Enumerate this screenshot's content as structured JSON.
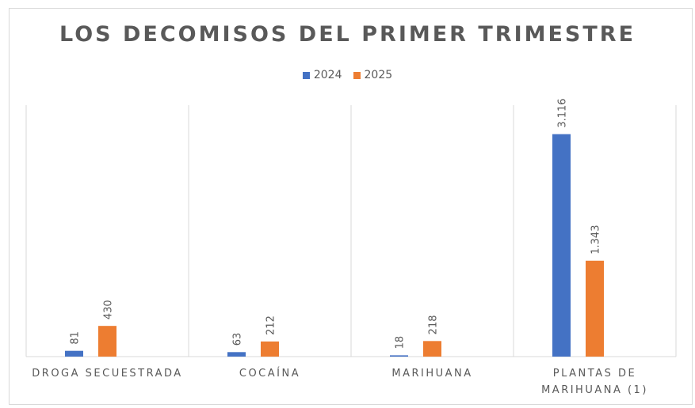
{
  "chart_data": {
    "type": "bar",
    "title": "LOS DECOMISOS DEL PRIMER TRIMESTRE",
    "categories": [
      [
        "DROGA SECUESTRADA"
      ],
      [
        "COCAÍNA"
      ],
      [
        "MARIHUANA"
      ],
      [
        "PLANTAS DE",
        "MARIHUANA (1)"
      ]
    ],
    "series": [
      {
        "name": "2024",
        "color": "#4472c4",
        "values": [
          81,
          63,
          18,
          3116
        ],
        "labels": [
          "81",
          "63",
          "18",
          "3.116"
        ]
      },
      {
        "name": "2025",
        "color": "#ed7d31",
        "values": [
          430,
          212,
          218,
          1343
        ],
        "labels": [
          "430",
          "212",
          "218",
          "1.343"
        ]
      }
    ],
    "xlabel": "",
    "ylabel": "",
    "ylim": [
      0,
      3500
    ],
    "grid": "vertical category separators",
    "legend": "top-center",
    "y_axis_visible": false
  }
}
